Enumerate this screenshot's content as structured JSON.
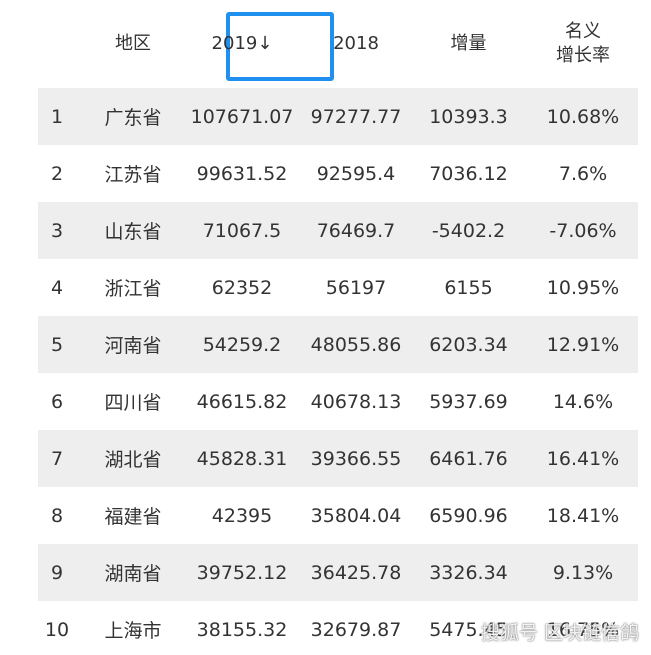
{
  "table": {
    "headers": {
      "region": "地区",
      "y2019": "2019↓",
      "y2018": "2018",
      "increase": "增量",
      "rate_line1": "名义",
      "rate_line2": "增长率"
    },
    "rows": [
      {
        "rank": "1",
        "region": "广东省",
        "y2019": "107671.07",
        "y2018": "97277.77",
        "increase": "10393.3",
        "rate": "10.68%"
      },
      {
        "rank": "2",
        "region": "江苏省",
        "y2019": "99631.52",
        "y2018": "92595.4",
        "increase": "7036.12",
        "rate": "7.6%"
      },
      {
        "rank": "3",
        "region": "山东省",
        "y2019": "71067.5",
        "y2018": "76469.7",
        "increase": "-5402.2",
        "rate": "-7.06%"
      },
      {
        "rank": "4",
        "region": "浙江省",
        "y2019": "62352",
        "y2018": "56197",
        "increase": "6155",
        "rate": "10.95%"
      },
      {
        "rank": "5",
        "region": "河南省",
        "y2019": "54259.2",
        "y2018": "48055.86",
        "increase": "6203.34",
        "rate": "12.91%"
      },
      {
        "rank": "6",
        "region": "四川省",
        "y2019": "46615.82",
        "y2018": "40678.13",
        "increase": "5937.69",
        "rate": "14.6%"
      },
      {
        "rank": "7",
        "region": "湖北省",
        "y2019": "45828.31",
        "y2018": "39366.55",
        "increase": "6461.76",
        "rate": "16.41%"
      },
      {
        "rank": "8",
        "region": "福建省",
        "y2019": "42395",
        "y2018": "35804.04",
        "increase": "6590.96",
        "rate": "18.41%"
      },
      {
        "rank": "9",
        "region": "湖南省",
        "y2019": "39752.12",
        "y2018": "36425.78",
        "increase": "3326.34",
        "rate": "9.13%"
      },
      {
        "rank": "10",
        "region": "上海市",
        "y2019": "38155.32",
        "y2018": "32679.87",
        "increase": "5475.45",
        "rate": "16.75%"
      }
    ]
  },
  "watermark": "搜狐号 区块链信鸽",
  "colors": {
    "sort_highlight": "#1f8ff0",
    "row_shade": "#eeeeee",
    "text": "#333333"
  }
}
